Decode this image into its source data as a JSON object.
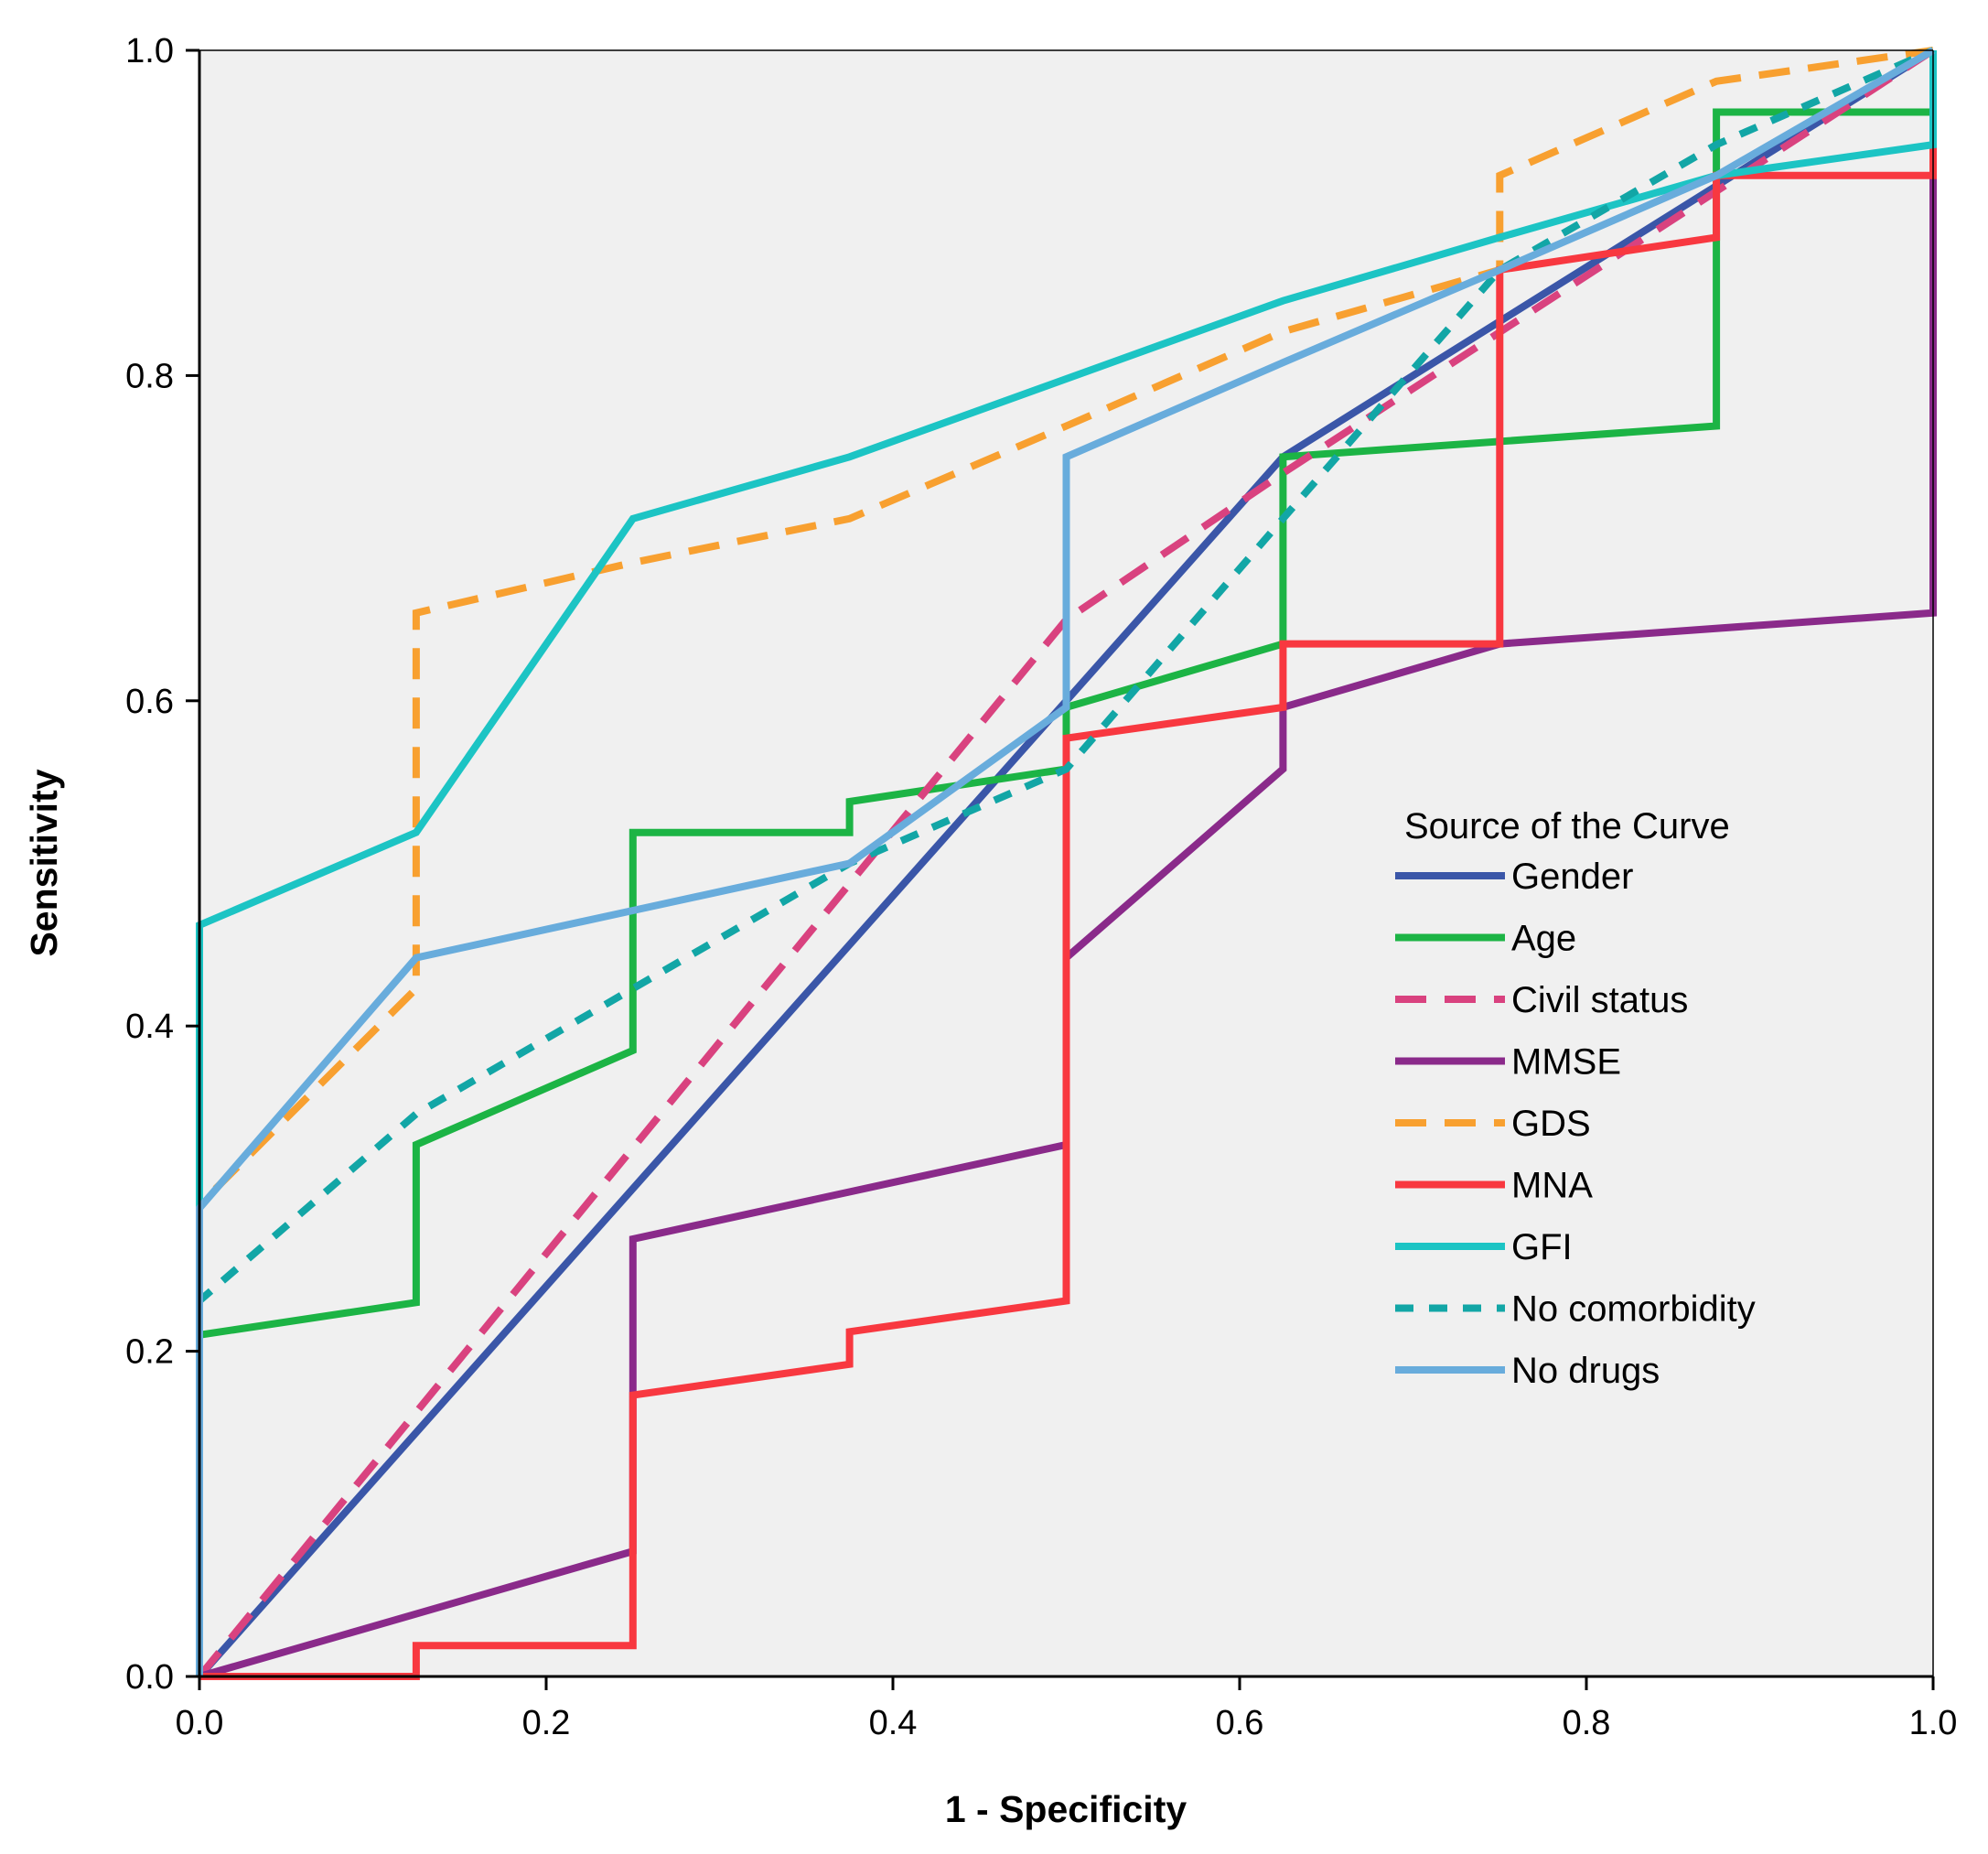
{
  "chart_data": {
    "type": "line",
    "title": "",
    "xlabel": "1 - Specificity",
    "ylabel": "Sensitivity",
    "xlim": [
      0,
      1
    ],
    "ylim": [
      0,
      1
    ],
    "xticks": [
      "0.0",
      "0.2",
      "0.4",
      "0.6",
      "0.8",
      "1.0"
    ],
    "yticks": [
      "0.0",
      "0.2",
      "0.4",
      "0.6",
      "0.8",
      "1.0"
    ],
    "grid": false,
    "background": "#f0f0f0",
    "legend_title": "Source of the Curve",
    "legend_position": "right-middle",
    "series": [
      {
        "name": "Gender",
        "color": "#3a56a8",
        "dash": "solid",
        "points": [
          [
            0,
            0
          ],
          [
            0.625,
            0.75
          ],
          [
            1,
            1
          ]
        ]
      },
      {
        "name": "Age",
        "color": "#1cb445",
        "dash": "solid",
        "points": [
          [
            0,
            0
          ],
          [
            0,
            0.21
          ],
          [
            0.125,
            0.23
          ],
          [
            0.125,
            0.327
          ],
          [
            0.25,
            0.385
          ],
          [
            0.25,
            0.519
          ],
          [
            0.375,
            0.519
          ],
          [
            0.375,
            0.538
          ],
          [
            0.5,
            0.558
          ],
          [
            0.5,
            0.596
          ],
          [
            0.625,
            0.635
          ],
          [
            0.625,
            0.75
          ],
          [
            0.875,
            0.769
          ],
          [
            0.875,
            0.962
          ],
          [
            1,
            0.962
          ],
          [
            1,
            1
          ]
        ]
      },
      {
        "name": "Civil status",
        "color": "#d9427f",
        "dash": "dashed",
        "points": [
          [
            0,
            0
          ],
          [
            0.5,
            0.65
          ],
          [
            0.625,
            0.74
          ],
          [
            1,
            1
          ]
        ]
      },
      {
        "name": "MMSE",
        "color": "#8a2a8a",
        "dash": "solid",
        "points": [
          [
            0,
            0
          ],
          [
            0.25,
            0.077
          ],
          [
            0.25,
            0.269
          ],
          [
            0.5,
            0.327
          ],
          [
            0.5,
            0.442
          ],
          [
            0.625,
            0.558
          ],
          [
            0.625,
            0.596
          ],
          [
            0.75,
            0.635
          ],
          [
            1,
            0.654
          ],
          [
            1,
            1
          ]
        ]
      },
      {
        "name": "GDS",
        "color": "#f8a030",
        "dash": "dashed",
        "points": [
          [
            0,
            0
          ],
          [
            0,
            0.29
          ],
          [
            0.125,
            0.423
          ],
          [
            0.125,
            0.654
          ],
          [
            0.25,
            0.685
          ],
          [
            0.375,
            0.712
          ],
          [
            0.5,
            0.769
          ],
          [
            0.625,
            0.827
          ],
          [
            0.75,
            0.865
          ],
          [
            0.75,
            0.923
          ],
          [
            0.875,
            0.981
          ],
          [
            1,
            1
          ]
        ]
      },
      {
        "name": "MNA",
        "color": "#f83840",
        "dash": "solid",
        "points": [
          [
            0,
            0
          ],
          [
            0.125,
            0
          ],
          [
            0.125,
            0.019
          ],
          [
            0.25,
            0.019
          ],
          [
            0.25,
            0.173
          ],
          [
            0.375,
            0.192
          ],
          [
            0.375,
            0.212
          ],
          [
            0.5,
            0.231
          ],
          [
            0.5,
            0.577
          ],
          [
            0.625,
            0.596
          ],
          [
            0.625,
            0.635
          ],
          [
            0.75,
            0.635
          ],
          [
            0.75,
            0.865
          ],
          [
            0.875,
            0.885
          ],
          [
            0.875,
            0.923
          ],
          [
            1,
            0.923
          ],
          [
            1,
            1
          ]
        ]
      },
      {
        "name": "GFI",
        "color": "#1cc4c4",
        "dash": "solid",
        "points": [
          [
            0,
            0
          ],
          [
            0,
            0.462
          ],
          [
            0.125,
            0.519
          ],
          [
            0.25,
            0.712
          ],
          [
            0.375,
            0.75
          ],
          [
            0.5,
            0.798
          ],
          [
            0.625,
            0.846
          ],
          [
            0.75,
            0.885
          ],
          [
            0.875,
            0.923
          ],
          [
            1,
            0.942
          ],
          [
            1,
            1
          ]
        ]
      },
      {
        "name": "No comorbidity",
        "color": "#12a6a6",
        "dash": "dotted",
        "points": [
          [
            0,
            0
          ],
          [
            0,
            0.231
          ],
          [
            0.125,
            0.346
          ],
          [
            0.25,
            0.423
          ],
          [
            0.375,
            0.5
          ],
          [
            0.5,
            0.558
          ],
          [
            0.625,
            0.712
          ],
          [
            0.75,
            0.865
          ],
          [
            0.875,
            0.942
          ],
          [
            1,
            1
          ]
        ]
      },
      {
        "name": "No drugs",
        "color": "#68acdc",
        "dash": "solid",
        "points": [
          [
            0,
            0
          ],
          [
            0,
            0.288
          ],
          [
            0.125,
            0.442
          ],
          [
            0.25,
            0.471
          ],
          [
            0.375,
            0.5
          ],
          [
            0.5,
            0.596
          ],
          [
            0.5,
            0.75
          ],
          [
            0.625,
            0.808
          ],
          [
            0.75,
            0.865
          ],
          [
            0.875,
            0.923
          ],
          [
            1,
            1
          ]
        ]
      }
    ]
  }
}
